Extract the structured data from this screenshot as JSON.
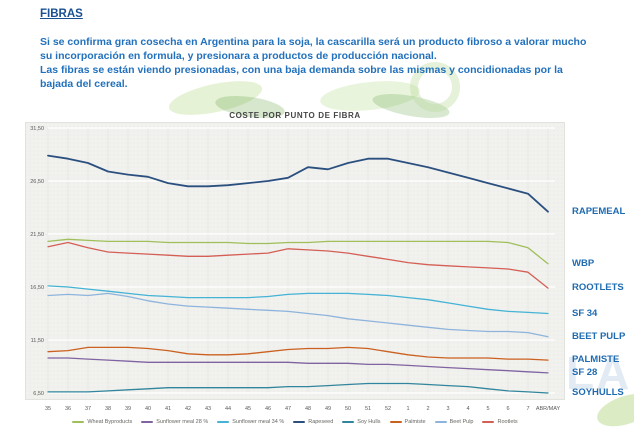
{
  "page": {
    "title": "FIBRAS",
    "paragraphs": [
      "Si se confirma gran cosecha en Argentina para la soja, la cascarilla será un producto fibroso a valorar mucho su incorporación en formula, y presionara a productos de producción nacional.",
      "Las fibras se están viendo presionadas, con una baja demanda sobre las mismas y concidionadas por la bajada del cereal."
    ]
  },
  "watermark": {
    "text": "LA"
  },
  "chart_data": {
    "type": "line",
    "title": "COSTE POR PUNTO DE FIBRA",
    "xlabel": "",
    "ylabel": "",
    "x": [
      "35",
      "36",
      "37",
      "38",
      "39",
      "40",
      "41",
      "42",
      "43",
      "44",
      "45",
      "46",
      "47",
      "48",
      "49",
      "50",
      "51",
      "52",
      "1",
      "2",
      "3",
      "4",
      "5",
      "6",
      "7",
      "ABR/MAY"
    ],
    "ylim": [
      6.5,
      31.5
    ],
    "yticks": {
      "values": [
        31.5,
        26.5,
        21.5,
        16.5,
        11.5,
        6.5
      ],
      "labels": [
        "31,50",
        "26,50",
        "21,50",
        "16,50",
        "11,50",
        "6,50"
      ]
    },
    "grid": true,
    "legend_position": "bottom",
    "series": [
      {
        "name": "Wheat Byproducts",
        "annotation": "WBP",
        "color": "#9fbf5a",
        "stroke_width": 1.3,
        "values": [
          20.8,
          21.0,
          20.9,
          20.8,
          20.8,
          20.8,
          20.7,
          20.7,
          20.7,
          20.7,
          20.6,
          20.6,
          20.7,
          20.7,
          20.8,
          20.8,
          20.8,
          20.8,
          20.8,
          20.8,
          20.8,
          20.8,
          20.8,
          20.7,
          20.2,
          18.7
        ]
      },
      {
        "name": "Sunflower meal 28 %",
        "annotation": "SF 28",
        "color": "#8064a2",
        "stroke_width": 1.3,
        "values": [
          9.8,
          9.8,
          9.7,
          9.6,
          9.5,
          9.4,
          9.4,
          9.4,
          9.4,
          9.4,
          9.4,
          9.4,
          9.4,
          9.3,
          9.3,
          9.3,
          9.2,
          9.2,
          9.1,
          9.0,
          8.9,
          8.8,
          8.7,
          8.6,
          8.5,
          8.4
        ]
      },
      {
        "name": "Sunflower meal 34 %",
        "annotation": "SF 34",
        "color": "#44b3d5",
        "stroke_width": 1.3,
        "values": [
          16.6,
          16.5,
          16.3,
          16.1,
          15.9,
          15.7,
          15.6,
          15.5,
          15.5,
          15.5,
          15.5,
          15.6,
          15.8,
          15.9,
          15.9,
          15.9,
          15.8,
          15.7,
          15.5,
          15.3,
          15.0,
          14.7,
          14.4,
          14.2,
          14.1,
          14.0
        ]
      },
      {
        "name": "Rapeseed",
        "annotation": "RAPEMEAL",
        "color": "#2b5080",
        "stroke_width": 1.8,
        "values": [
          28.9,
          28.6,
          28.2,
          27.4,
          27.1,
          26.9,
          26.3,
          26.0,
          26.0,
          26.1,
          26.3,
          26.5,
          26.8,
          27.8,
          27.6,
          28.2,
          28.6,
          28.6,
          28.2,
          27.8,
          27.3,
          26.8,
          26.3,
          25.8,
          25.3,
          23.6
        ]
      },
      {
        "name": "Soy Hulls",
        "annotation": "SOYHULLS",
        "color": "#31859c",
        "stroke_width": 1.3,
        "values": [
          6.6,
          6.6,
          6.6,
          6.7,
          6.8,
          6.9,
          7.0,
          7.0,
          7.0,
          7.0,
          7.0,
          7.0,
          7.1,
          7.1,
          7.2,
          7.3,
          7.4,
          7.4,
          7.4,
          7.3,
          7.2,
          7.1,
          6.9,
          6.7,
          6.6,
          6.5
        ]
      },
      {
        "name": "Palmiste",
        "annotation": "PALMISTE",
        "color": "#cb6120",
        "stroke_width": 1.3,
        "values": [
          10.4,
          10.5,
          10.8,
          10.8,
          10.8,
          10.7,
          10.5,
          10.2,
          10.1,
          10.1,
          10.2,
          10.4,
          10.6,
          10.7,
          10.7,
          10.8,
          10.7,
          10.4,
          10.1,
          9.9,
          9.8,
          9.8,
          9.8,
          9.7,
          9.7,
          9.6
        ]
      },
      {
        "name": "Beet Pulp",
        "annotation": "BEET PULP",
        "color": "#8eb4dc",
        "stroke_width": 1.3,
        "values": [
          15.7,
          15.8,
          15.7,
          15.9,
          15.6,
          15.2,
          14.9,
          14.7,
          14.6,
          14.5,
          14.4,
          14.3,
          14.2,
          14.0,
          13.8,
          13.5,
          13.3,
          13.1,
          12.9,
          12.7,
          12.5,
          12.4,
          12.3,
          12.3,
          12.2,
          11.8
        ]
      },
      {
        "name": "Rootlets",
        "annotation": "ROOTLETS",
        "color": "#d45f55",
        "stroke_width": 1.3,
        "values": [
          20.3,
          20.7,
          20.2,
          19.8,
          19.7,
          19.6,
          19.5,
          19.4,
          19.4,
          19.5,
          19.6,
          19.7,
          20.1,
          20.0,
          19.9,
          19.7,
          19.4,
          19.1,
          18.8,
          18.6,
          18.5,
          18.4,
          18.3,
          18.2,
          17.9,
          16.4
        ]
      }
    ]
  }
}
